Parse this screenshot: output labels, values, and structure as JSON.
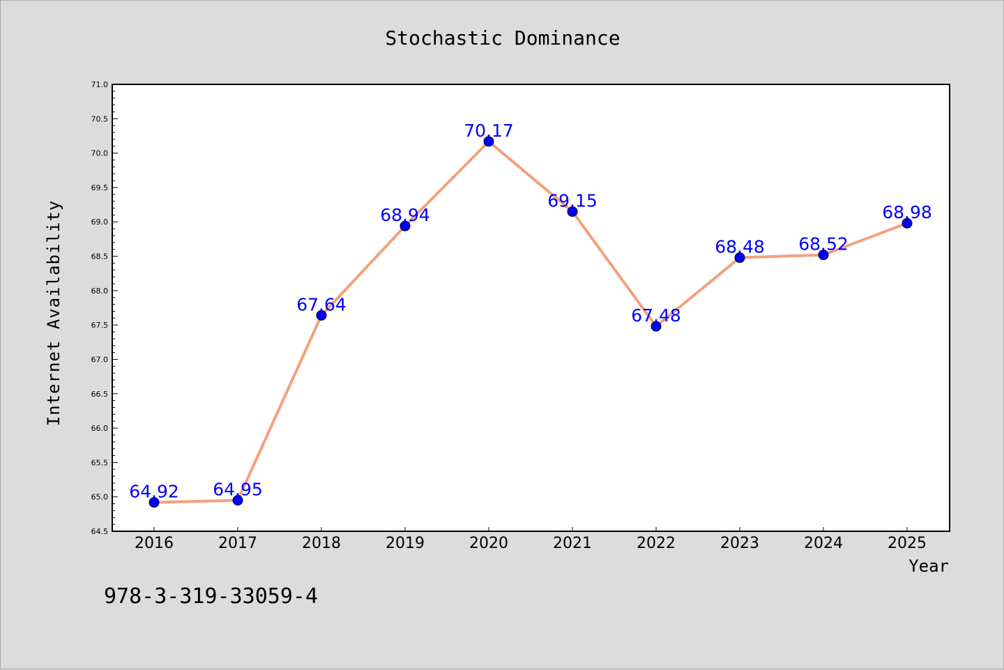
{
  "chart_data": {
    "type": "line",
    "title": "Stochastic Dominance",
    "xlabel": "Year",
    "ylabel": "Internet Availability",
    "categories": [
      "2016",
      "2017",
      "2018",
      "2019",
      "2020",
      "2021",
      "2022",
      "2023",
      "2024",
      "2025"
    ],
    "series": [
      {
        "values": [
          64.92,
          64.95,
          67.64,
          68.94,
          70.17,
          69.15,
          67.48,
          68.48,
          68.52,
          68.98
        ],
        "line_color": "#f4a07a",
        "marker_color": "#0000ff"
      }
    ],
    "data_labels": [
      "64.92",
      "64.95",
      "67.64",
      "68.94",
      "70.17",
      "69.15",
      "67.48",
      "68.48",
      "68.52",
      "68.98"
    ],
    "ylim": [
      64.5,
      71.0
    ],
    "yticks": [
      "64.5",
      "65.0",
      "65.5",
      "66.0",
      "66.5",
      "67.0",
      "67.5",
      "68.0",
      "68.5",
      "69.0",
      "69.5",
      "70.0",
      "70.5",
      "71.0"
    ],
    "grid": false,
    "legend": "none"
  },
  "footnote": "978-3-319-33059-4",
  "colors": {
    "background": "#dcdcdc",
    "plot_background": "#ffffff",
    "line": "#f4a07a",
    "marker": "#0000ff",
    "data_label": "#0000ff"
  }
}
